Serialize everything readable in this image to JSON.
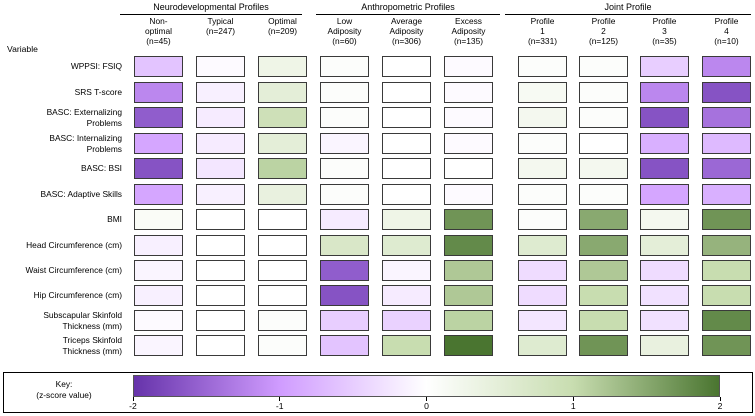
{
  "chart_data": {
    "type": "heatmap",
    "variable_header": "Variable",
    "groups": [
      {
        "title": "Neurodevelopmental Profiles",
        "columns": [
          {
            "label": "Non-\noptimal\n(n=45)"
          },
          {
            "label": "Typical\n(n=247)"
          },
          {
            "label": "Optimal\n(n=209)"
          }
        ]
      },
      {
        "title": "Anthropometric Profiles",
        "columns": [
          {
            "label": "Low\nAdiposity\n(n=60)"
          },
          {
            "label": "Average\nAdiposity\n(n=306)"
          },
          {
            "label": "Excess\nAdiposity\n(n=135)"
          }
        ]
      },
      {
        "title": "Joint Profile",
        "columns": [
          {
            "label": "Profile\n1\n(n=331)"
          },
          {
            "label": "Profile\n2\n(n=125)"
          },
          {
            "label": "Profile\n3\n(n=35)"
          },
          {
            "label": "Profile\n4\n(n=10)"
          }
        ]
      }
    ],
    "rows": [
      {
        "label": "WPPSI: FSIQ",
        "values": [
          -0.6,
          -0.05,
          0.3,
          0.05,
          0.0,
          -0.05,
          0.05,
          0.05,
          -0.5,
          -1.2
        ]
      },
      {
        "label": "SRS T-score",
        "values": [
          -1.2,
          -0.15,
          0.5,
          0.05,
          0.0,
          -0.05,
          0.15,
          0.05,
          -1.2,
          -1.7
        ]
      },
      {
        "label": "BASC: Externalizing\nProblems",
        "values": [
          -1.6,
          -0.2,
          0.9,
          0.05,
          0.0,
          -0.05,
          0.2,
          0.05,
          -1.7,
          -1.4
        ]
      },
      {
        "label": "BASC: Internalizing\nProblems",
        "values": [
          -0.9,
          -0.2,
          0.5,
          -0.1,
          0.0,
          -0.05,
          0.05,
          0.0,
          -0.8,
          -0.7
        ]
      },
      {
        "label": "BASC: BSI",
        "values": [
          -1.7,
          -0.25,
          1.1,
          0.05,
          0.0,
          0.0,
          0.2,
          0.2,
          -1.7,
          -1.5
        ]
      },
      {
        "label": "BASC: Adaptive Skills",
        "values": [
          -0.9,
          -0.15,
          0.4,
          0.05,
          0.0,
          -0.05,
          0.05,
          0.05,
          -0.9,
          -0.8
        ]
      },
      {
        "label": "BMI",
        "values": [
          0.1,
          0.0,
          0.0,
          -0.2,
          0.3,
          1.7,
          0.05,
          1.5,
          0.2,
          1.7
        ]
      },
      {
        "label": "Head Circumference (cm)",
        "values": [
          -0.15,
          0.0,
          0.0,
          0.7,
          0.6,
          1.8,
          0.6,
          1.5,
          0.5,
          1.4
        ]
      },
      {
        "label": "Waist Circumference (cm)",
        "values": [
          -0.1,
          0.0,
          0.0,
          -1.6,
          -0.1,
          1.2,
          -0.35,
          1.2,
          -0.35,
          1.0
        ]
      },
      {
        "label": "Hip Circumference (cm)",
        "values": [
          -0.15,
          0.0,
          0.0,
          -1.7,
          -0.2,
          1.2,
          -0.35,
          1.0,
          -0.3,
          1.0
        ]
      },
      {
        "label": "Subscapular Skinfold\nThickness (mm)",
        "values": [
          -0.05,
          0.0,
          0.05,
          -0.5,
          -0.45,
          1.1,
          -0.25,
          1.0,
          -0.3,
          1.8
        ]
      },
      {
        "label": "Triceps Skinfold\nThickness (mm)",
        "values": [
          -0.1,
          0.0,
          0.05,
          -0.6,
          1.0,
          2.0,
          0.6,
          1.7,
          0.4,
          1.7
        ]
      }
    ],
    "colorscale": {
      "min": -2,
      "max": 2,
      "stops": [
        {
          "value": -2,
          "color": "#6633aa"
        },
        {
          "value": -1,
          "color": "#d09cff"
        },
        {
          "value": 0,
          "color": "#ffffff"
        },
        {
          "value": 1,
          "color": "#c8ddb0"
        },
        {
          "value": 2,
          "color": "#4a7530"
        }
      ]
    },
    "key": {
      "title": "Key:\n(z-score value)",
      "ticks": [
        "-2",
        "-1",
        "0",
        "1",
        "2"
      ]
    }
  }
}
